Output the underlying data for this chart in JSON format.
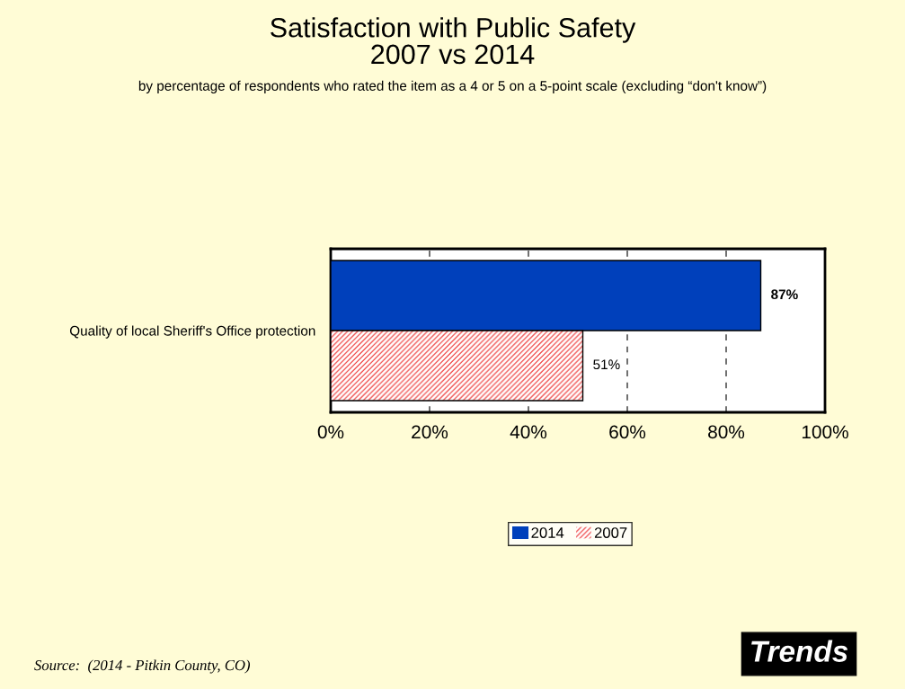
{
  "chart_data": {
    "type": "bar",
    "orientation": "horizontal",
    "title": "Satisfaction with Public Safety\n2007 vs 2014",
    "subtitle": "by percentage of respondents who rated the item as a 4 or 5 on a 5-point scale (excluding “don't know”)",
    "categories": [
      "Quality of local Sheriff's Office protection"
    ],
    "series": [
      {
        "name": "2014",
        "color": "#0040bb",
        "values": [
          87
        ],
        "value_labels": [
          "87%"
        ]
      },
      {
        "name": "2007",
        "color": "#ee3333",
        "values": [
          51
        ],
        "value_labels": [
          "51%"
        ]
      }
    ],
    "xlim": [
      0,
      100
    ],
    "xticks": [
      {
        "value": 0,
        "label": "0%"
      },
      {
        "value": 20,
        "label": "20%"
      },
      {
        "value": 40,
        "label": "40%"
      },
      {
        "value": 60,
        "label": "60%"
      },
      {
        "value": 80,
        "label": "80%"
      },
      {
        "value": 100,
        "label": "100%"
      }
    ],
    "grid": "x",
    "line_style": "dashed",
    "legend": "bottom",
    "annotations": [
      "Source:  (2014 - Pitkin County, CO)",
      "Trends"
    ]
  }
}
